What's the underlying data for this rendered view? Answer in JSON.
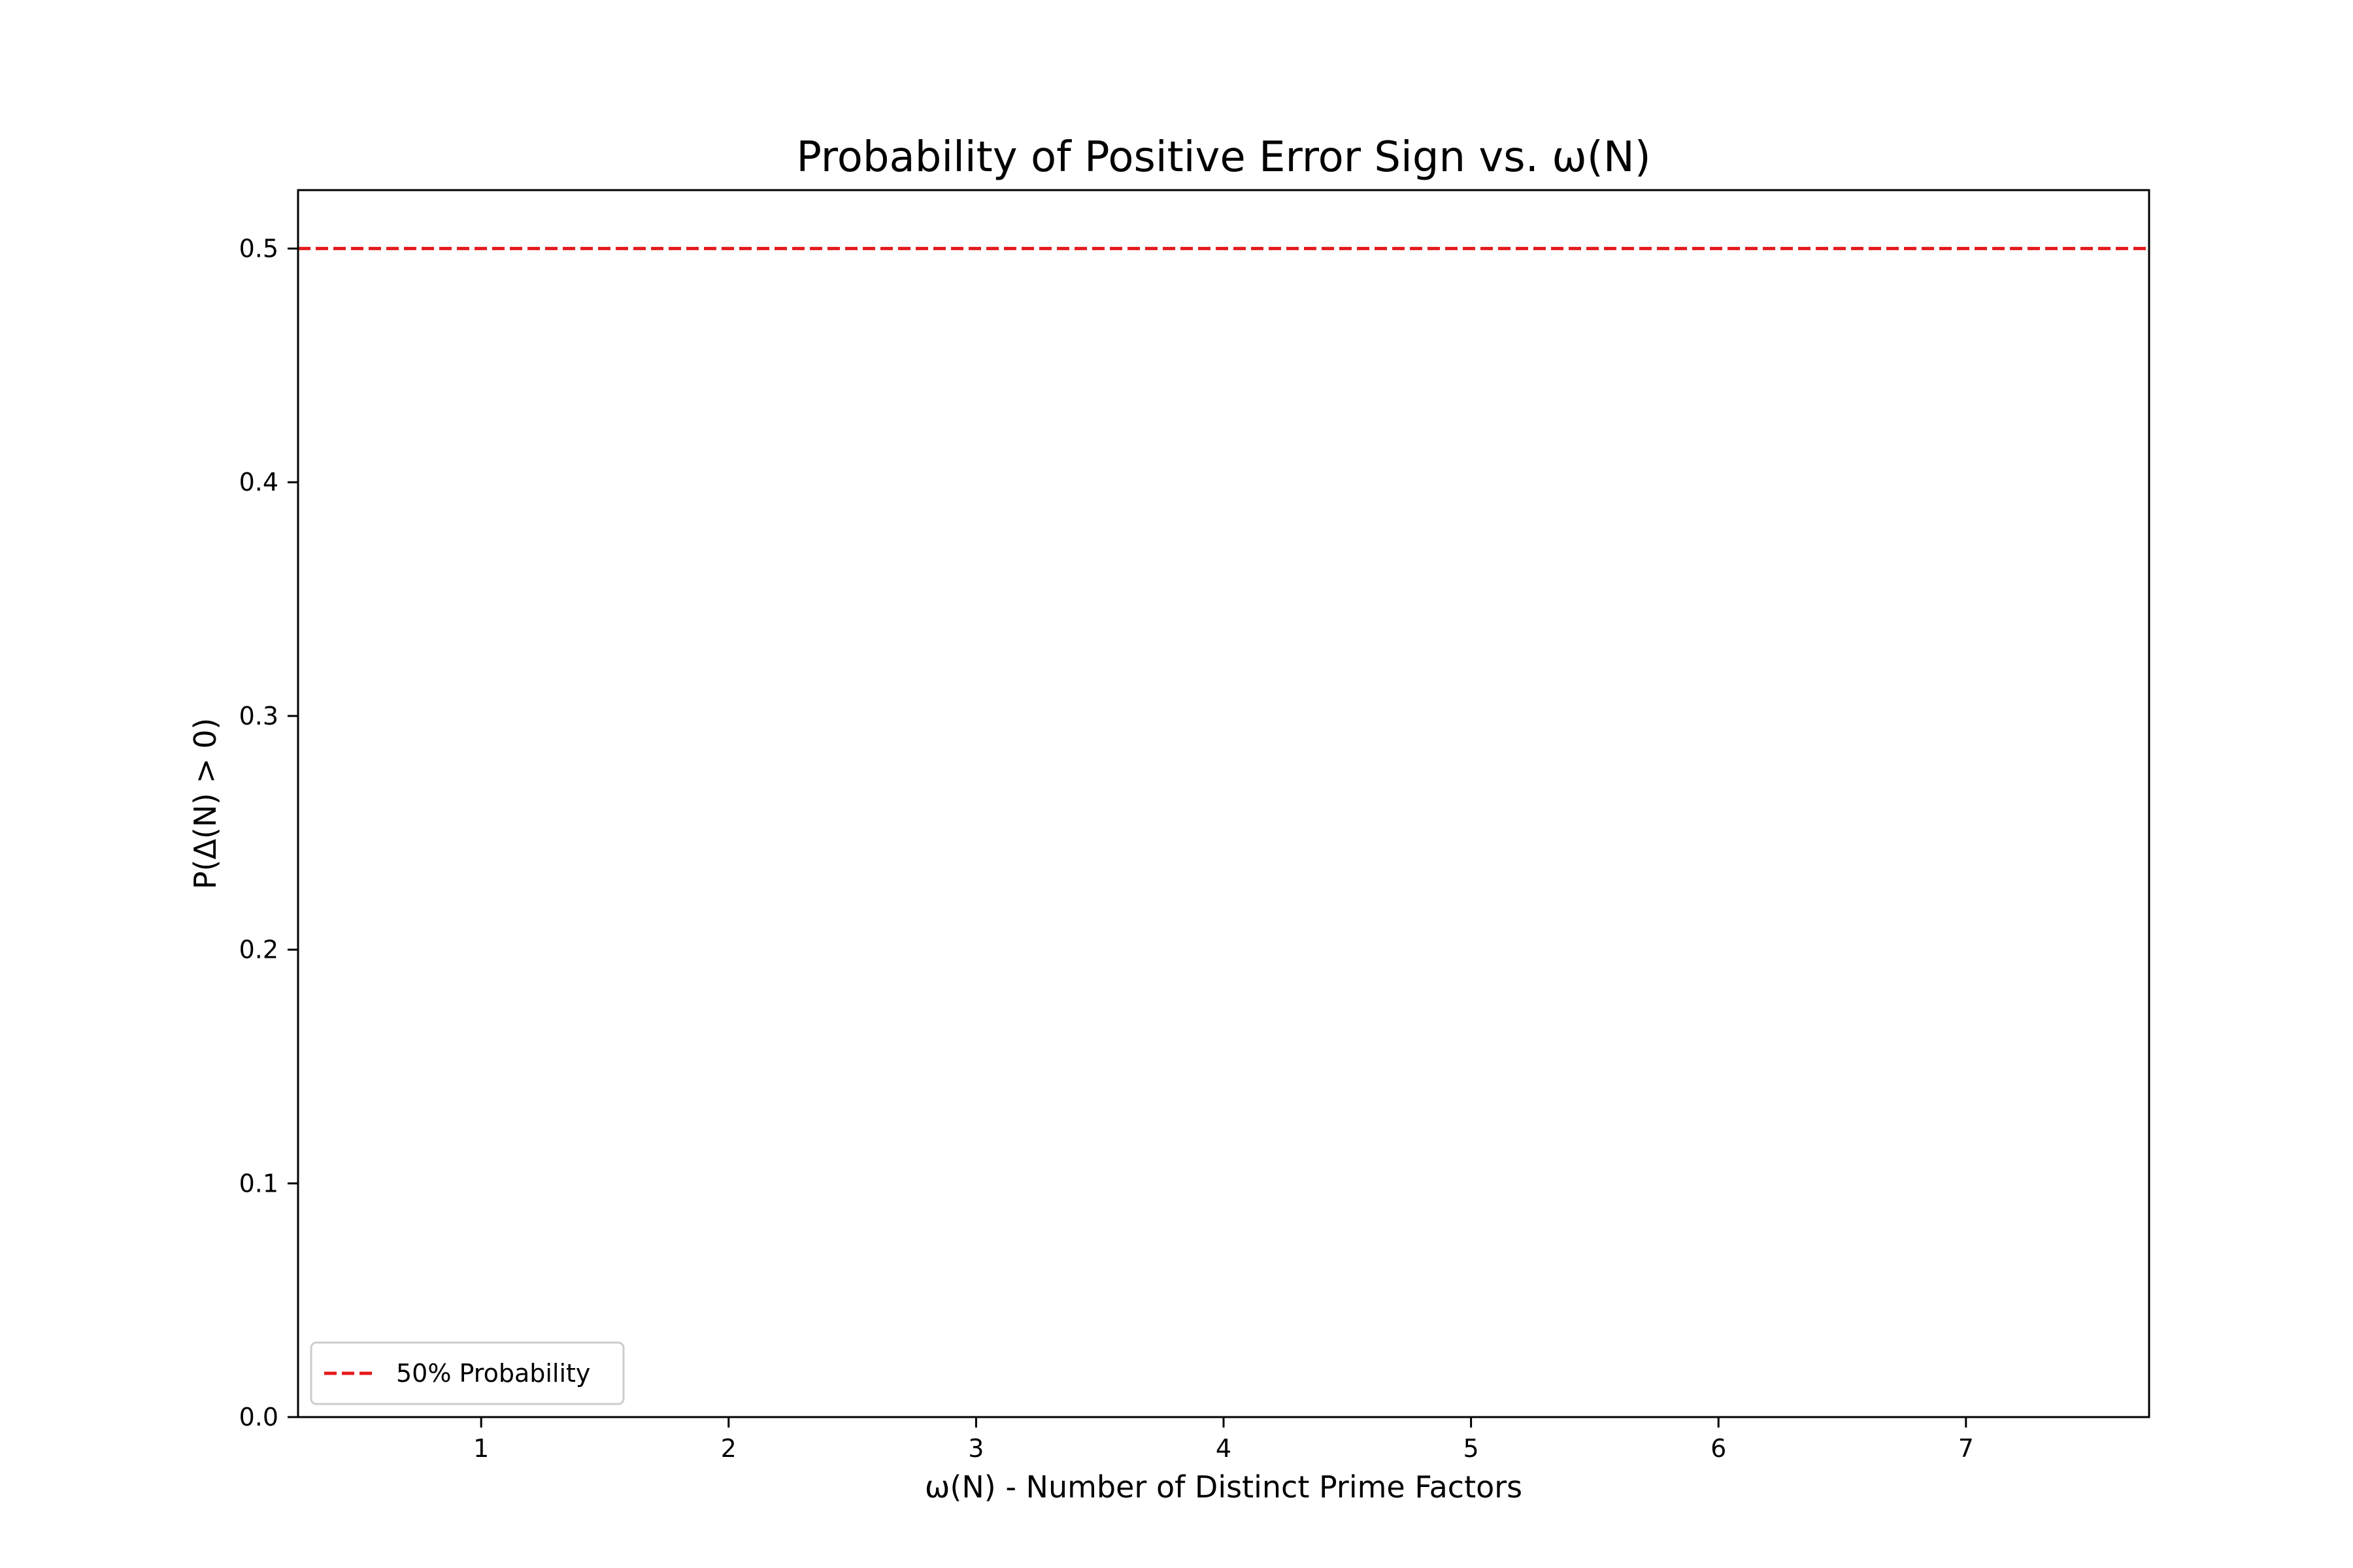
{
  "chart_data": {
    "type": "line",
    "title": "Probability of Positive Error Sign vs. ω(N)",
    "xlabel": "ω(N) - Number of Distinct Prime Factors",
    "ylabel": "P(Δ(N) > 0)",
    "xlim": [
      0.26,
      7.74
    ],
    "ylim": [
      0.0,
      0.525
    ],
    "xticks": [
      1,
      2,
      3,
      4,
      5,
      6,
      7
    ],
    "xtick_labels": [
      "1",
      "2",
      "3",
      "4",
      "5",
      "6",
      "7"
    ],
    "yticks": [
      0.0,
      0.1,
      0.2,
      0.3,
      0.4,
      0.5
    ],
    "ytick_labels": [
      "0.0",
      "0.1",
      "0.2",
      "0.3",
      "0.4",
      "0.5"
    ],
    "grid": false,
    "legend_position": "lower-left",
    "series": [],
    "reference_lines": [
      {
        "name": "50% Probability",
        "orientation": "horizontal",
        "y": 0.5,
        "style": "dashed",
        "color": "#e41a1c"
      }
    ]
  }
}
